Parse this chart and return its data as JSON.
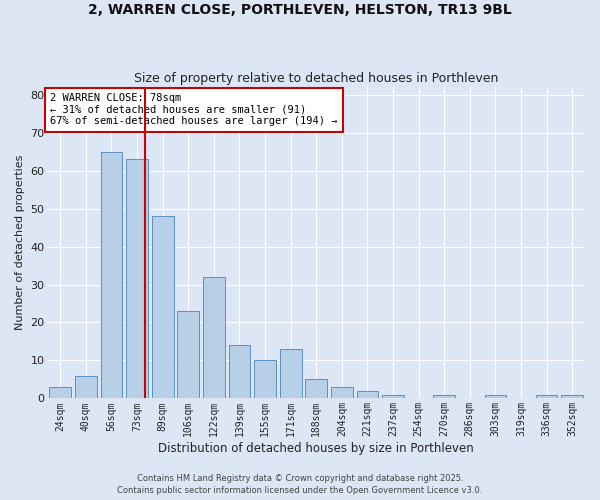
{
  "title": "2, WARREN CLOSE, PORTHLEVEN, HELSTON, TR13 9BL",
  "subtitle": "Size of property relative to detached houses in Porthleven",
  "xlabel": "Distribution of detached houses by size in Porthleven",
  "ylabel": "Number of detached properties",
  "footer_line1": "Contains HM Land Registry data © Crown copyright and database right 2025.",
  "footer_line2": "Contains public sector information licensed under the Open Government Licence v3.0.",
  "bar_labels": [
    "24sqm",
    "40sqm",
    "56sqm",
    "73sqm",
    "89sqm",
    "106sqm",
    "122sqm",
    "139sqm",
    "155sqm",
    "171sqm",
    "188sqm",
    "204sqm",
    "221sqm",
    "237sqm",
    "254sqm",
    "270sqm",
    "286sqm",
    "303sqm",
    "319sqm",
    "336sqm",
    "352sqm"
  ],
  "bar_values": [
    3,
    6,
    65,
    63,
    48,
    23,
    32,
    14,
    10,
    13,
    5,
    3,
    2,
    1,
    0,
    1,
    0,
    1,
    0,
    1,
    1
  ],
  "bar_color": "#b8cfe8",
  "bar_edge_color": "#5b8fc9",
  "background_color": "#dce6f5",
  "grid_color": "#ffffff",
  "vline_color": "#cc0000",
  "vline_x_index": 3,
  "annotation_line1": "2 WARREN CLOSE: 78sqm",
  "annotation_line2": "← 31% of detached houses are smaller (91)",
  "annotation_line3": "67% of semi-detached houses are larger (194) →",
  "annotation_box_edge": "#cc0000",
  "ylim_max": 82,
  "yticks": [
    0,
    10,
    20,
    30,
    40,
    50,
    60,
    70,
    80
  ]
}
